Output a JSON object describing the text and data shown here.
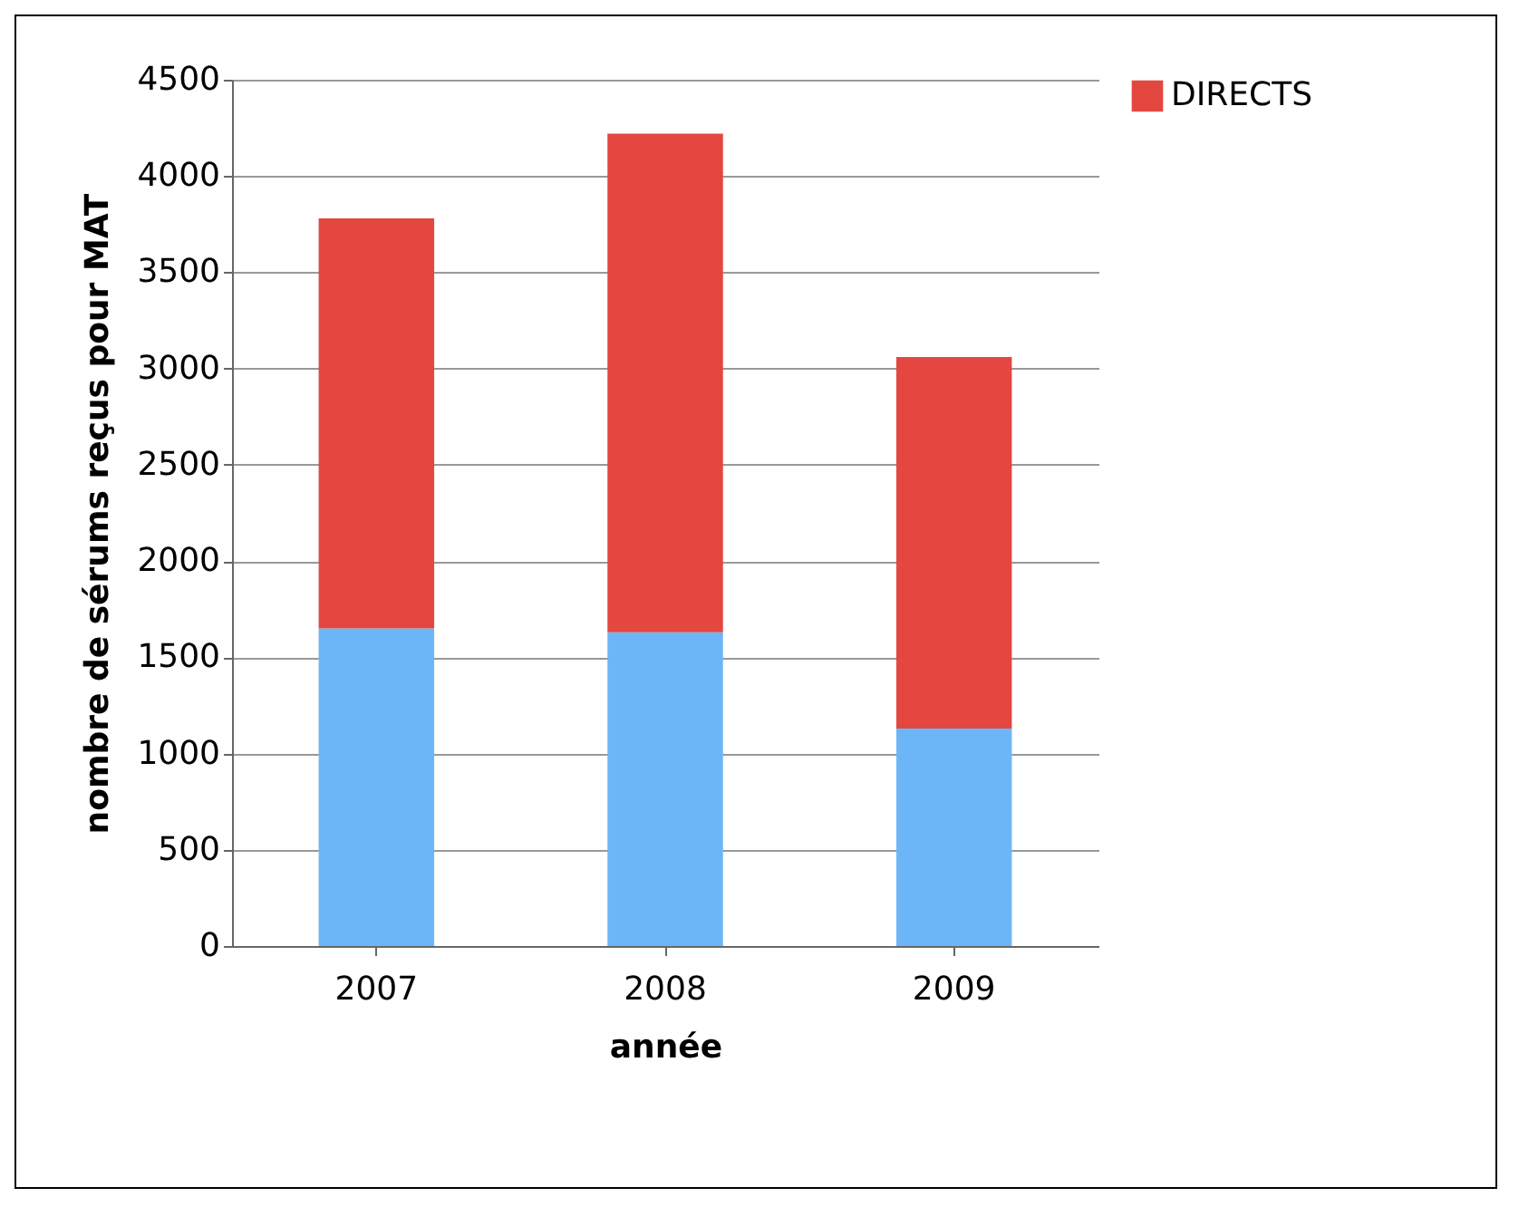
{
  "chart_data": {
    "type": "bar",
    "stacked": true,
    "xlabel": "année",
    "ylabel": "nombre de sérums reçus pour MAT",
    "categories": [
      "2007",
      "2008",
      "2009"
    ],
    "series": [
      {
        "color": "#6cb6f8",
        "values": [
          1650,
          1630,
          1130
        ]
      },
      {
        "name": "DIRECTS",
        "color": "#e34740",
        "values": [
          2130,
          2590,
          1930
        ]
      }
    ],
    "ylim": [
      0,
      4500
    ],
    "yticks": [
      0,
      500,
      1000,
      1500,
      2000,
      2500,
      3000,
      3500,
      4000,
      4500
    ],
    "grid": "y",
    "legend": "right"
  }
}
